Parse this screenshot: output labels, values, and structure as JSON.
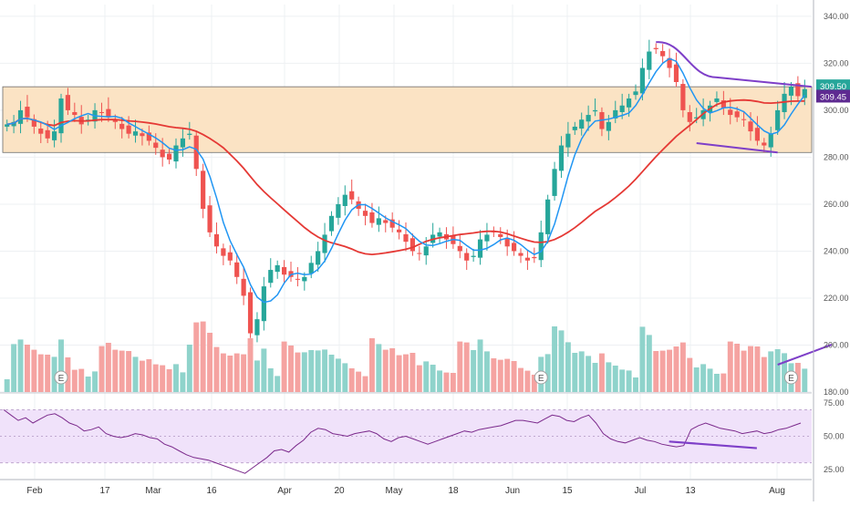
{
  "chart_data": {
    "type": "candlestick",
    "price_axis": {
      "ylim": [
        180,
        345
      ],
      "ticks": [
        "340.00",
        "320.00",
        "300.00",
        "280.00",
        "260.00",
        "240.00",
        "220.00",
        "200.00",
        "180.00"
      ]
    },
    "rsi_axis": {
      "ylim": [
        18,
        82
      ],
      "ticks": [
        "75.00",
        "50.00",
        "25.00"
      ],
      "band": [
        30,
        70
      ]
    },
    "time_labels": [
      "Feb",
      "17",
      "Mar",
      "16",
      "Apr",
      "20",
      "May",
      "18",
      "Jun",
      "15",
      "Jul",
      "13",
      "Aug"
    ],
    "price_tags": {
      "last": "309.50",
      "ma": "309.45"
    },
    "zone": {
      "low": 282,
      "high": 310
    },
    "earnings_marker": "E",
    "colors": {
      "up": "#26a69a",
      "down": "#ef5350",
      "up_vol": "#8fd3cb",
      "down_vol": "#f5a3a1",
      "ma_fast": "#2196f3",
      "ma_slow": "#e53935",
      "annot": "#7e3fc8",
      "zone": "#fbe3c4",
      "rsi": "#7b2a8c",
      "rsi_band": "#f0e2fa"
    },
    "ohlc_close": [
      294,
      295,
      300,
      297,
      293,
      290,
      288,
      291,
      305,
      300,
      298,
      294,
      296,
      300,
      299,
      297,
      295,
      292,
      290,
      291,
      289,
      287,
      284,
      280,
      279,
      285,
      288,
      290,
      275,
      258,
      248,
      242,
      238,
      236,
      229,
      221,
      205,
      211,
      225,
      232,
      234,
      230,
      229,
      228,
      229,
      235,
      240,
      247,
      255,
      260,
      264,
      262,
      258,
      255,
      252,
      254,
      252,
      250,
      248,
      244,
      240,
      239,
      242,
      247,
      248,
      245,
      243,
      240,
      236,
      238,
      245,
      247,
      248,
      246,
      242,
      240,
      238,
      236,
      237,
      248,
      262,
      275,
      285,
      290,
      293,
      296,
      298,
      300,
      292,
      295,
      300,
      302,
      305,
      308,
      318,
      325,
      326,
      323,
      318,
      312,
      300,
      295,
      297,
      300,
      302,
      305,
      301,
      298,
      297,
      296,
      291,
      287,
      285,
      290,
      300,
      307,
      310,
      306,
      309
    ],
    "rsi": [
      70,
      66,
      62,
      64,
      60,
      63,
      66,
      67,
      64,
      60,
      58,
      54,
      55,
      57,
      52,
      50,
      49,
      50,
      52,
      51,
      49,
      48,
      44,
      42,
      39,
      36,
      34,
      33,
      32,
      30,
      28,
      26,
      24,
      22,
      26,
      30,
      34,
      39,
      40,
      38,
      43,
      47,
      53,
      56,
      55,
      52,
      51,
      50,
      52,
      53,
      54,
      52,
      48,
      46,
      49,
      50,
      48,
      46,
      44,
      46,
      48,
      50,
      52,
      54,
      53,
      55,
      56,
      57,
      58,
      60,
      62,
      62,
      61,
      60,
      63,
      66,
      65,
      62,
      61,
      64,
      66,
      60,
      52,
      48,
      46,
      45,
      47,
      49,
      47,
      46,
      44,
      43,
      42,
      43,
      55,
      58,
      60,
      58,
      56,
      55,
      54,
      52,
      53,
      54,
      52,
      53,
      55,
      56,
      58,
      60
    ],
    "annotations": [
      "zone 282-310",
      "price divergence line",
      "volume rising line",
      "rsi divergence line"
    ]
  }
}
